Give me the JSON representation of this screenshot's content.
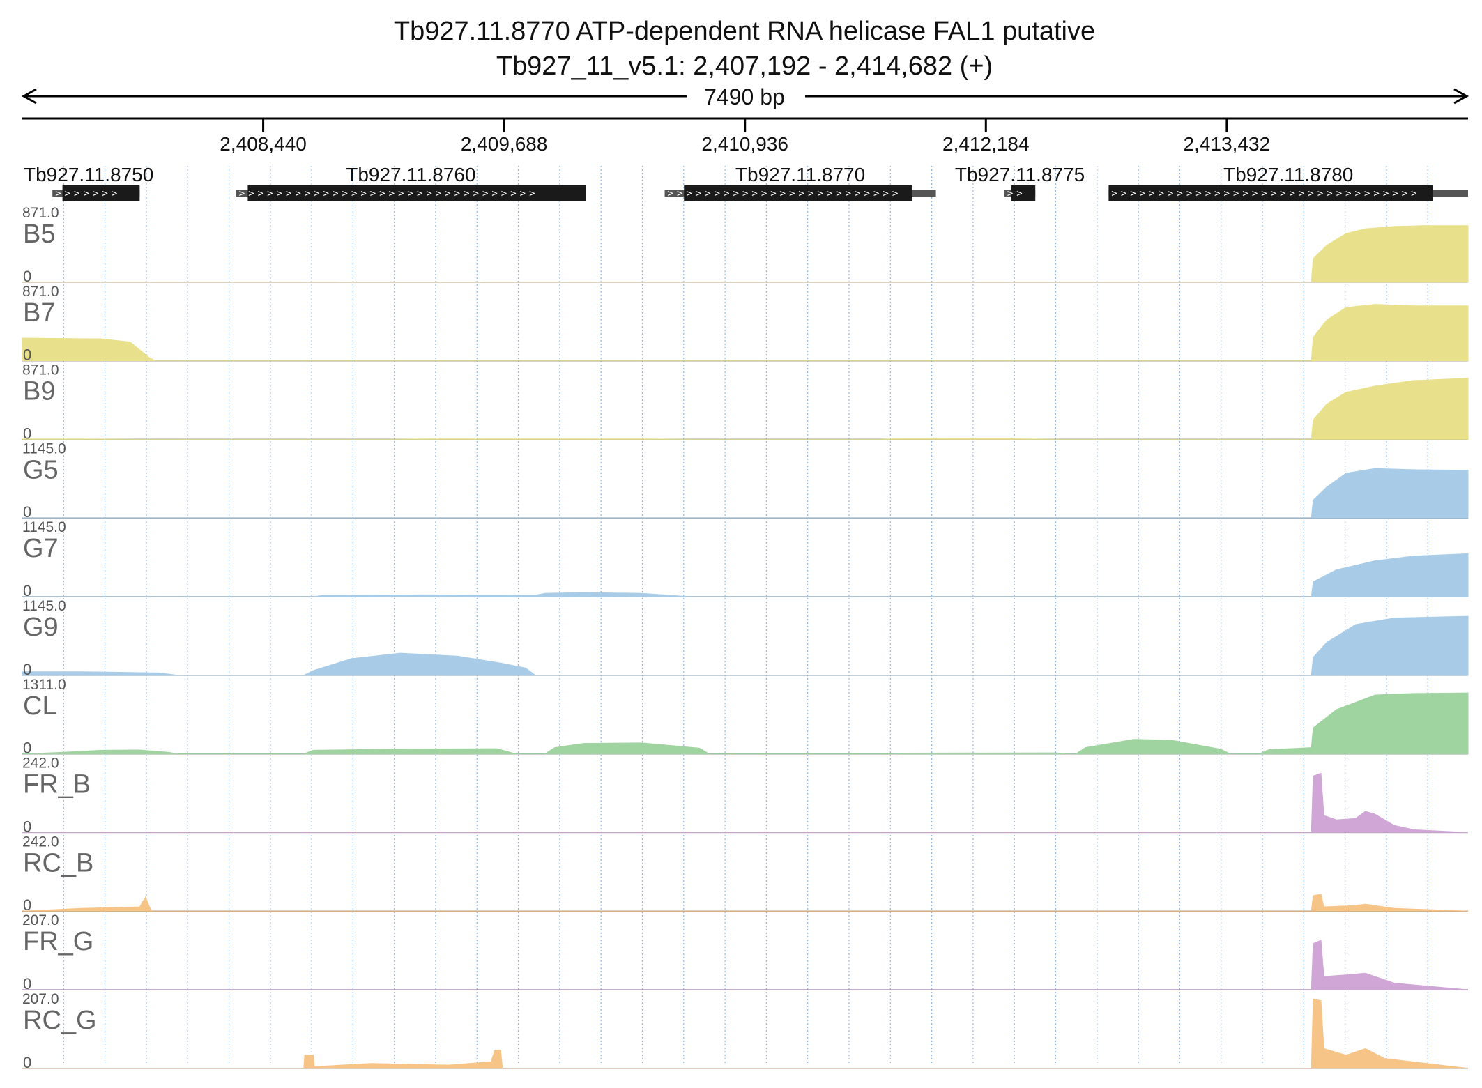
{
  "chart_data": {
    "type": "area",
    "title": "Tb927.11.8770  ATP-dependent RNA helicase FAL1  putative",
    "subtitle": "Tb927_11_v5.1: 2,407,192 - 2,414,682 (+)",
    "span_label": "7490 bp",
    "xlim": [
      2407192,
      2414682
    ],
    "x_ticks": [
      {
        "value": 2408440,
        "label": "2,408,440"
      },
      {
        "value": 2409688,
        "label": "2,409,688"
      },
      {
        "value": 2410936,
        "label": "2,410,936"
      },
      {
        "value": 2412184,
        "label": "2,412,184"
      },
      {
        "value": 2413432,
        "label": "2,413,432"
      }
    ],
    "genes": [
      {
        "name": "Tb927.11.8750",
        "start": 2407348,
        "end": 2407800,
        "utr_start": 2407348,
        "cds_start": 2407400,
        "cds_end": 2407800,
        "utr_end": 2407800
      },
      {
        "name": "Tb927.11.8760",
        "start": 2408300,
        "end": 2410110,
        "utr_start": 2408300,
        "cds_start": 2408360,
        "cds_end": 2410110,
        "utr_end": 2410110
      },
      {
        "name": "Tb927.11.8770",
        "start": 2410520,
        "end": 2411925,
        "utr_start": 2410520,
        "cds_start": 2410620,
        "cds_end": 2411800,
        "utr_end": 2411925
      },
      {
        "name": "Tb927.11.8775",
        "start": 2412280,
        "end": 2412440,
        "utr_start": 2412280,
        "cds_start": 2412315,
        "cds_end": 2412440,
        "utr_end": 2412440
      },
      {
        "name": "Tb927.11.8780",
        "start": 2412820,
        "end": 2414682,
        "utr_start": 2412820,
        "cds_start": 2412820,
        "cds_end": 2414500,
        "utr_end": 2414682
      }
    ],
    "series": [
      {
        "name": "B5",
        "ymax": 871.0,
        "ymin_label": "0",
        "color": "#e8e08a",
        "points": [
          [
            2407192,
            0
          ],
          [
            2408800,
            0
          ],
          [
            2408850,
            2
          ],
          [
            2409570,
            2
          ],
          [
            2409600,
            0
          ],
          [
            2413870,
            0
          ],
          [
            2413880,
            300
          ],
          [
            2413950,
            470
          ],
          [
            2414050,
            620
          ],
          [
            2414150,
            680
          ],
          [
            2414300,
            710
          ],
          [
            2414450,
            720
          ],
          [
            2414682,
            720
          ]
        ]
      },
      {
        "name": "B7",
        "ymax": 871.0,
        "ymin_label": "0",
        "color": "#e8e08a",
        "points": [
          [
            2407192,
            290
          ],
          [
            2407350,
            285
          ],
          [
            2407600,
            280
          ],
          [
            2407750,
            240
          ],
          [
            2407850,
            40
          ],
          [
            2407880,
            0
          ],
          [
            2413870,
            0
          ],
          [
            2413880,
            300
          ],
          [
            2413950,
            520
          ],
          [
            2414050,
            680
          ],
          [
            2414200,
            720
          ],
          [
            2414400,
            700
          ],
          [
            2414682,
            700
          ]
        ]
      },
      {
        "name": "B9",
        "ymax": 871.0,
        "ymin_label": "0",
        "color": "#e8e08a",
        "points": [
          [
            2407192,
            4
          ],
          [
            2407500,
            4
          ],
          [
            2407800,
            0
          ],
          [
            2409100,
            0
          ],
          [
            2409300,
            5
          ],
          [
            2410400,
            6
          ],
          [
            2410650,
            0
          ],
          [
            2411650,
            0
          ],
          [
            2411700,
            7
          ],
          [
            2412300,
            8
          ],
          [
            2412550,
            0
          ],
          [
            2413870,
            0
          ],
          [
            2413880,
            250
          ],
          [
            2413950,
            450
          ],
          [
            2414050,
            600
          ],
          [
            2414200,
            680
          ],
          [
            2414400,
            750
          ],
          [
            2414682,
            780
          ]
        ]
      },
      {
        "name": "G5",
        "ymax": 1145.0,
        "ymin_label": "0",
        "color": "#a8cce8",
        "points": [
          [
            2407192,
            0
          ],
          [
            2413870,
            0
          ],
          [
            2413880,
            300
          ],
          [
            2413950,
            520
          ],
          [
            2414050,
            750
          ],
          [
            2414200,
            830
          ],
          [
            2414400,
            810
          ],
          [
            2414682,
            800
          ]
        ]
      },
      {
        "name": "G7",
        "ymax": 1145.0,
        "ymin_label": "0",
        "color": "#a8cce8",
        "points": [
          [
            2407192,
            0
          ],
          [
            2408700,
            0
          ],
          [
            2408750,
            25
          ],
          [
            2409300,
            30
          ],
          [
            2409850,
            25
          ],
          [
            2409900,
            55
          ],
          [
            2410100,
            70
          ],
          [
            2410400,
            55
          ],
          [
            2410650,
            0
          ],
          [
            2413870,
            0
          ],
          [
            2413880,
            250
          ],
          [
            2414000,
            450
          ],
          [
            2414200,
            600
          ],
          [
            2414400,
            680
          ],
          [
            2414682,
            720
          ]
        ]
      },
      {
        "name": "G9",
        "ymax": 1145.0,
        "ymin_label": "0",
        "color": "#a8cce8",
        "points": [
          [
            2407192,
            60
          ],
          [
            2407500,
            60
          ],
          [
            2407900,
            40
          ],
          [
            2408000,
            0
          ],
          [
            2408650,
            0
          ],
          [
            2408700,
            80
          ],
          [
            2408900,
            280
          ],
          [
            2409150,
            370
          ],
          [
            2409450,
            320
          ],
          [
            2409680,
            200
          ],
          [
            2409800,
            120
          ],
          [
            2409850,
            0
          ],
          [
            2413870,
            0
          ],
          [
            2413880,
            300
          ],
          [
            2413950,
            550
          ],
          [
            2414100,
            850
          ],
          [
            2414300,
            960
          ],
          [
            2414682,
            990
          ]
        ]
      },
      {
        "name": "CL",
        "ymax": 1311.0,
        "ymin_label": "0",
        "color": "#9fd39f",
        "points": [
          [
            2407192,
            0
          ],
          [
            2407400,
            30
          ],
          [
            2407600,
            70
          ],
          [
            2407800,
            75
          ],
          [
            2407950,
            30
          ],
          [
            2408000,
            0
          ],
          [
            2408650,
            0
          ],
          [
            2408700,
            70
          ],
          [
            2409100,
            90
          ],
          [
            2409650,
            100
          ],
          [
            2409750,
            0
          ],
          [
            2409900,
            0
          ],
          [
            2409950,
            120
          ],
          [
            2410100,
            200
          ],
          [
            2410400,
            210
          ],
          [
            2410700,
            110
          ],
          [
            2410750,
            0
          ],
          [
            2411700,
            0
          ],
          [
            2411750,
            15
          ],
          [
            2412550,
            20
          ],
          [
            2412600,
            0
          ],
          [
            2412650,
            0
          ],
          [
            2412700,
            120
          ],
          [
            2412950,
            280
          ],
          [
            2413150,
            260
          ],
          [
            2413400,
            90
          ],
          [
            2413450,
            0
          ],
          [
            2413600,
            0
          ],
          [
            2413650,
            80
          ],
          [
            2413870,
            120
          ],
          [
            2413880,
            500
          ],
          [
            2414000,
            850
          ],
          [
            2414200,
            1130
          ],
          [
            2414400,
            1160
          ],
          [
            2414682,
            1170
          ]
        ]
      },
      {
        "name": "FR_B",
        "ymax": 242.0,
        "ymin_label": "0",
        "color": "#cfa6d6",
        "points": [
          [
            2407192,
            0
          ],
          [
            2413870,
            0
          ],
          [
            2413880,
            200
          ],
          [
            2413920,
            210
          ],
          [
            2413935,
            60
          ],
          [
            2414000,
            45
          ],
          [
            2414100,
            50
          ],
          [
            2414150,
            75
          ],
          [
            2414200,
            65
          ],
          [
            2414300,
            25
          ],
          [
            2414400,
            10
          ],
          [
            2414682,
            0
          ]
        ]
      },
      {
        "name": "RC_B",
        "ymax": 242.0,
        "ymin_label": "0",
        "color": "#f7c488",
        "points": [
          [
            2407192,
            0
          ],
          [
            2407500,
            10
          ],
          [
            2407800,
            15
          ],
          [
            2407830,
            50
          ],
          [
            2407860,
            0
          ],
          [
            2413870,
            0
          ],
          [
            2413880,
            55
          ],
          [
            2413920,
            60
          ],
          [
            2413935,
            15
          ],
          [
            2414100,
            20
          ],
          [
            2414150,
            25
          ],
          [
            2414300,
            10
          ],
          [
            2414682,
            0
          ]
        ]
      },
      {
        "name": "FR_G",
        "ymax": 207.0,
        "ymin_label": "0",
        "color": "#cfa6d6",
        "points": [
          [
            2407192,
            0
          ],
          [
            2413870,
            0
          ],
          [
            2413880,
            140
          ],
          [
            2413920,
            150
          ],
          [
            2413935,
            40
          ],
          [
            2414050,
            45
          ],
          [
            2414150,
            50
          ],
          [
            2414300,
            20
          ],
          [
            2414682,
            0
          ]
        ]
      },
      {
        "name": "RC_G",
        "ymax": 207.0,
        "ymin_label": "0",
        "color": "#f7c488",
        "points": [
          [
            2407192,
            0
          ],
          [
            2408650,
            0
          ],
          [
            2408655,
            40
          ],
          [
            2408700,
            40
          ],
          [
            2408705,
            5
          ],
          [
            2409000,
            15
          ],
          [
            2409400,
            10
          ],
          [
            2409620,
            20
          ],
          [
            2409640,
            55
          ],
          [
            2409670,
            55
          ],
          [
            2409680,
            0
          ],
          [
            2413870,
            0
          ],
          [
            2413880,
            210
          ],
          [
            2413920,
            205
          ],
          [
            2413935,
            60
          ],
          [
            2414050,
            40
          ],
          [
            2414150,
            60
          ],
          [
            2414250,
            30
          ],
          [
            2414682,
            0
          ]
        ]
      }
    ]
  }
}
